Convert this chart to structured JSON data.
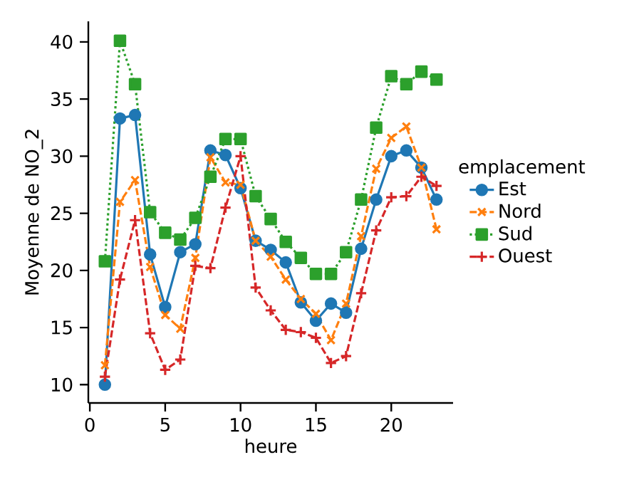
{
  "chart_data": {
    "type": "line",
    "xlabel": "heure",
    "ylabel": "Moyenne de NO_2",
    "legend_title": "emplacement",
    "legend": "right",
    "grid": false,
    "xlim": [
      -0.1,
      24.1
    ],
    "ylim": [
      8.4,
      41.8
    ],
    "xticks": [
      0,
      5,
      10,
      15,
      20
    ],
    "yticks": [
      10,
      15,
      20,
      25,
      30,
      35,
      40
    ],
    "x": [
      1,
      2,
      3,
      4,
      5,
      6,
      7,
      8,
      9,
      10,
      11,
      12,
      13,
      14,
      15,
      16,
      17,
      18,
      19,
      20,
      21,
      22,
      23
    ],
    "series": [
      {
        "name": "Est",
        "color": "#1f77b4",
        "marker": "circle",
        "line_style": "solid",
        "values": [
          10.0,
          33.3,
          33.6,
          21.4,
          16.8,
          21.6,
          22.3,
          30.5,
          30.1,
          27.2,
          22.6,
          21.8,
          20.7,
          17.2,
          15.6,
          17.1,
          16.3,
          21.9,
          26.2,
          30.0,
          30.5,
          29.0,
          26.2
        ]
      },
      {
        "name": "Nord",
        "color": "#ff7f0e",
        "marker": "cross",
        "line_style": "dashed",
        "values": [
          11.7,
          26.0,
          27.9,
          20.3,
          16.1,
          14.9,
          21.1,
          29.9,
          27.7,
          27.5,
          22.6,
          21.2,
          19.2,
          17.5,
          16.2,
          13.9,
          17.1,
          23.0,
          28.9,
          31.6,
          32.6,
          29.0,
          23.6
        ]
      },
      {
        "name": "Sud",
        "color": "#2ca02c",
        "marker": "square",
        "line_style": "dotted",
        "values": [
          20.8,
          40.1,
          36.3,
          25.1,
          23.3,
          22.7,
          24.6,
          28.2,
          31.5,
          31.5,
          26.5,
          24.5,
          22.5,
          21.1,
          19.7,
          19.7,
          21.6,
          26.2,
          32.5,
          37.0,
          36.3,
          37.4,
          36.7
        ]
      },
      {
        "name": "Ouest",
        "color": "#d62728",
        "marker": "plus",
        "line_style": "dashed",
        "values": [
          10.7,
          19.2,
          24.4,
          14.5,
          11.3,
          12.2,
          20.4,
          20.2,
          25.5,
          30.0,
          18.5,
          16.5,
          14.8,
          14.6,
          14.1,
          11.9,
          12.5,
          18.0,
          23.5,
          26.4,
          26.5,
          28.2,
          27.4
        ]
      }
    ]
  }
}
